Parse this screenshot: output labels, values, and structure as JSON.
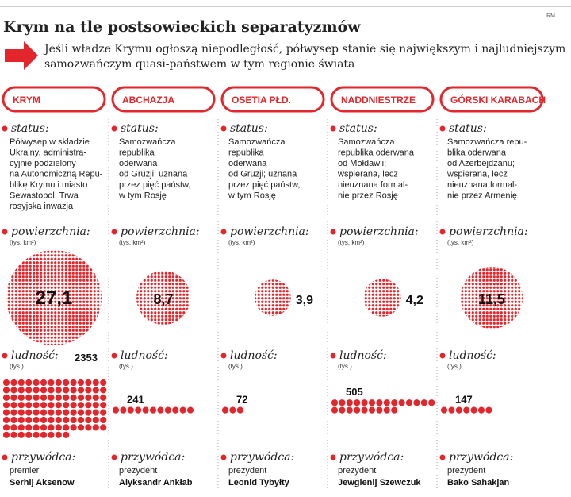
{
  "header": {
    "title": "Krym na tle postsowieckich separatyzmów",
    "credit": "RM",
    "subtitle": [
      "Jeśli władze Krymu ogłoszą niepodległość, półwysep stanie się największym i najludniejszym",
      "samozwańczym quasi-państwem w tym regionie świata"
    ]
  },
  "columns": [
    {
      "name": "KRYM",
      "status_label": "status:",
      "status": [
        "Półwysep w składzie",
        "Ukrainy, administra-",
        "cyjnie podzielony",
        "na Autonomiczną Repu-",
        "blikę Krymu i miasto",
        "Sewastopol. Trwa",
        "rosyjska inwazja"
      ],
      "area_label": "powierzchnia:",
      "area_unit": "(tys. km²)",
      "area": {
        "value": 27.1,
        "label": "27,1"
      },
      "population_label": "ludność:",
      "population_unit": "(tys.)",
      "population": 2353,
      "leader_label": "przywódca:",
      "leader_title": "premier",
      "leader_name": "Serhij Aksenow"
    },
    {
      "name": "ABCHAZJA",
      "status_label": "status:",
      "status": [
        "Samozwańcza",
        "republika",
        "oderwana",
        "od Gruzji; uznana",
        "przez pięć państw,",
        "w tym Rosję"
      ],
      "area_label": "powierzchnia:",
      "area_unit": "(tys. km²)",
      "area": {
        "value": 8.7,
        "label": "8,7"
      },
      "population_label": "ludność:",
      "population_unit": "(tys.)",
      "population": 241,
      "leader_label": "przywódca:",
      "leader_title": "prezydent",
      "leader_name": "Alyksandr Ankłab"
    },
    {
      "name": "OSETIA PŁD.",
      "status_label": "status:",
      "status": [
        "Samozwańcza",
        "republika",
        "oderwana",
        "od Gruzji; uznana",
        "przez pięć państw,",
        "w tym Rosję"
      ],
      "area_label": "powierzchnia:",
      "area_unit": "(tys. km²)",
      "area": {
        "value": 3.9,
        "label": "3,9"
      },
      "population_label": "ludność:",
      "population_unit": "(tys.)",
      "population": 72,
      "leader_label": "przywódca:",
      "leader_title": "prezydent",
      "leader_name": "Leonid Tybyłty"
    },
    {
      "name": "NADDNIESTRZE",
      "status_label": "status:",
      "status": [
        "Samozwańcza",
        "republika oderwana",
        "od Mołdawii;",
        "wspierana, lecz",
        "nieuznana formal-",
        "nie przez Rosję"
      ],
      "area_label": "powierzchnia:",
      "area_unit": "(tys. km²)",
      "area": {
        "value": 4.2,
        "label": "4,2"
      },
      "population_label": "ludność:",
      "population_unit": "(tys.)",
      "population": 505,
      "leader_label": "przywódca:",
      "leader_title": "prezydent",
      "leader_name": "Jewgienij Szewczuk"
    },
    {
      "name": "GÓRSKI KARABACH",
      "status_label": "status:",
      "status": [
        "Samozwańcza repu-",
        "blika oderwana",
        "od Azerbejdżanu;",
        "wspierana, lecz",
        "nieuznana formal-",
        "nie przez Armenię"
      ],
      "area_label": "powierzchnia:",
      "area_unit": "(tys. km²)",
      "area": {
        "value": 11.5,
        "label": "11,5"
      },
      "population_label": "ludność:",
      "population_unit": "(tys.)",
      "population": 147,
      "leader_label": "przywódca:",
      "leader_title": "prezydent",
      "leader_name": "Bako Sahakjan"
    }
  ]
}
